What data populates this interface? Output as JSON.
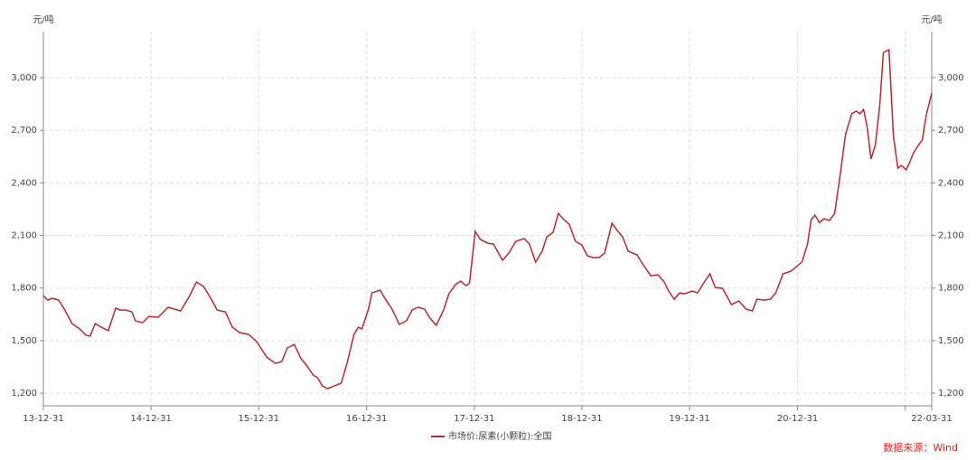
{
  "chart_data": {
    "type": "line",
    "y_label": "元/吨",
    "source": "数据来源：Wind",
    "x": [
      "13-12-31",
      "14-01-15",
      "14-01-31",
      "14-02-21",
      "14-03-12",
      "14-04-07",
      "14-04-30",
      "14-05-25",
      "14-06-07",
      "14-06-25",
      "14-07-15",
      "14-08-08",
      "14-09-02",
      "14-09-17",
      "14-10-08",
      "14-10-27",
      "14-11-08",
      "14-12-02",
      "14-12-24",
      "15-01-24",
      "15-02-27",
      "15-04-10",
      "15-05-10",
      "15-06-03",
      "15-06-27",
      "15-07-27",
      "15-08-12",
      "15-09-09",
      "15-10-03",
      "15-10-27",
      "15-11-27",
      "15-12-24",
      "16-01-27",
      "16-02-26",
      "16-03-18",
      "16-04-06",
      "16-04-30",
      "16-05-21",
      "16-06-12",
      "16-07-03",
      "16-07-18",
      "16-08-03",
      "16-08-21",
      "16-09-12",
      "16-10-06",
      "16-10-27",
      "16-11-18",
      "16-12-03",
      "16-12-15",
      "17-01-06",
      "17-01-18",
      "17-02-15",
      "17-03-03",
      "17-03-27",
      "17-04-21",
      "17-05-15",
      "17-06-03",
      "17-06-24",
      "17-07-15",
      "17-08-03",
      "17-08-24",
      "17-09-18",
      "17-10-06",
      "17-10-31",
      "17-11-15",
      "17-12-03",
      "17-12-15",
      "18-01-03",
      "18-01-21",
      "18-02-15",
      "18-03-06",
      "18-04-06",
      "18-04-27",
      "18-05-21",
      "18-06-18",
      "18-07-06",
      "18-07-27",
      "18-08-18",
      "18-09-03",
      "18-09-24",
      "18-10-12",
      "18-10-31",
      "18-11-18",
      "18-12-09",
      "18-12-31",
      "19-01-18",
      "19-02-06",
      "19-02-27",
      "19-03-18",
      "19-04-12",
      "19-04-30",
      "19-05-18",
      "19-06-06",
      "19-07-06",
      "19-07-27",
      "19-08-21",
      "19-09-15",
      "19-10-06",
      "19-10-21",
      "19-11-09",
      "19-11-27",
      "19-12-15",
      "20-01-09",
      "20-01-27",
      "20-02-21",
      "20-03-09",
      "20-03-27",
      "20-04-21",
      "20-05-21",
      "20-06-15",
      "20-07-09",
      "20-07-31",
      "20-08-15",
      "20-09-09",
      "20-09-30",
      "20-10-18",
      "20-11-12",
      "20-12-09",
      "20-12-31",
      "21-01-15",
      "21-02-03",
      "21-02-15",
      "21-02-28",
      "21-03-15",
      "21-03-31",
      "21-04-18",
      "21-05-06",
      "21-05-24",
      "21-06-12",
      "21-07-03",
      "21-07-18",
      "21-07-31",
      "21-08-12",
      "21-08-24",
      "21-09-06",
      "21-09-21",
      "21-10-06",
      "21-10-18",
      "21-11-06",
      "21-11-21",
      "21-12-06",
      "21-12-18",
      "22-01-03",
      "22-01-15",
      "22-01-27",
      "22-02-15",
      "22-02-27",
      "22-03-12",
      "22-03-31"
    ],
    "series": [
      {
        "name": "市场价:尿素(小颗粒):全国",
        "color": "#c0272d",
        "values": [
          1757,
          1731,
          1741,
          1731,
          1680,
          1597,
          1571,
          1530,
          1525,
          1597,
          1576,
          1556,
          1685,
          1674,
          1674,
          1664,
          1613,
          1602,
          1638,
          1633,
          1690,
          1669,
          1752,
          1834,
          1809,
          1726,
          1674,
          1664,
          1576,
          1546,
          1535,
          1494,
          1406,
          1370,
          1380,
          1458,
          1478,
          1401,
          1355,
          1303,
          1288,
          1241,
          1226,
          1241,
          1257,
          1380,
          1535,
          1576,
          1566,
          1680,
          1772,
          1788,
          1741,
          1680,
          1592,
          1613,
          1674,
          1690,
          1680,
          1628,
          1587,
          1674,
          1767,
          1824,
          1839,
          1813,
          1829,
          2123,
          2077,
          2056,
          2051,
          1958,
          1999,
          2066,
          2082,
          2051,
          1948,
          2010,
          2092,
          2118,
          2226,
          2190,
          2164,
          2066,
          2046,
          1984,
          1974,
          1974,
          2000,
          2170,
          2128,
          2092,
          2010,
          1989,
          1932,
          1870,
          1876,
          1834,
          1783,
          1736,
          1772,
          1767,
          1783,
          1772,
          1839,
          1881,
          1803,
          1798,
          1705,
          1726,
          1680,
          1669,
          1736,
          1731,
          1736,
          1772,
          1881,
          1896,
          1927,
          1948,
          2051,
          2190,
          2216,
          2174,
          2195,
          2185,
          2226,
          2438,
          2680,
          2794,
          2809,
          2794,
          2819,
          2721,
          2536,
          2618,
          2850,
          3144,
          3160,
          2670,
          2484,
          2500,
          2474,
          2515,
          2567,
          2618,
          2644,
          2783,
          2912
        ]
      }
    ],
    "xlim": [
      "13-12-31",
      "22-03-31"
    ],
    "xticks": [
      "13-12-31",
      "14-12-31",
      "15-12-31",
      "16-12-31",
      "17-12-31",
      "18-12-31",
      "19-12-31",
      "20-12-31",
      {
        "value": "21-12-31",
        "label": null
      },
      "22-03-31"
    ],
    "ylim": [
      1128,
      3263
    ],
    "yticks": [
      {
        "value": 1200,
        "label": "1,200"
      },
      {
        "value": 1500,
        "label": "1,500"
      },
      {
        "value": 1800,
        "label": "1,800"
      },
      {
        "value": 2100,
        "label": "2,100"
      },
      {
        "value": 2400,
        "label": "2,400"
      },
      {
        "value": 2700,
        "label": "2,700"
      },
      {
        "value": 3000,
        "label": "3,000"
      }
    ],
    "grid": true
  }
}
